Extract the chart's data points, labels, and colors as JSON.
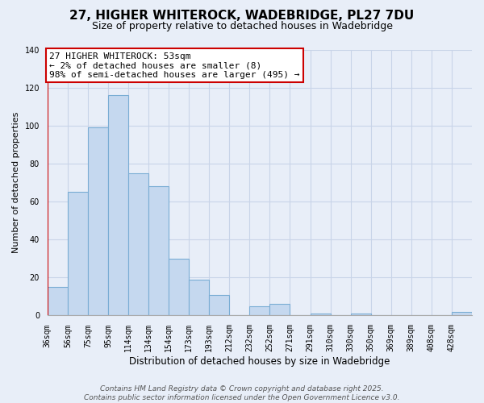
{
  "title": "27, HIGHER WHITEROCK, WADEBRIDGE, PL27 7DU",
  "subtitle": "Size of property relative to detached houses in Wadebridge",
  "xlabel": "Distribution of detached houses by size in Wadebridge",
  "ylabel": "Number of detached properties",
  "bar_labels": [
    "36sqm",
    "56sqm",
    "75sqm",
    "95sqm",
    "114sqm",
    "134sqm",
    "154sqm",
    "173sqm",
    "193sqm",
    "212sqm",
    "232sqm",
    "252sqm",
    "271sqm",
    "291sqm",
    "310sqm",
    "330sqm",
    "350sqm",
    "369sqm",
    "389sqm",
    "408sqm",
    "428sqm"
  ],
  "bar_values": [
    15,
    65,
    99,
    116,
    75,
    68,
    30,
    19,
    11,
    0,
    5,
    6,
    0,
    1,
    0,
    1,
    0,
    0,
    0,
    0,
    2
  ],
  "bar_color": "#c5d8ef",
  "bar_edge_color": "#7aadd4",
  "ylim": [
    0,
    140
  ],
  "yticks": [
    0,
    20,
    40,
    60,
    80,
    100,
    120,
    140
  ],
  "annotation_text_line1": "27 HIGHER WHITEROCK: 53sqm",
  "annotation_text_line2": "← 2% of detached houses are smaller (8)",
  "annotation_text_line3": "98% of semi-detached houses are larger (495) →",
  "vline_color": "#cc0000",
  "footer_line1": "Contains HM Land Registry data © Crown copyright and database right 2025.",
  "footer_line2": "Contains public sector information licensed under the Open Government Licence v3.0.",
  "background_color": "#e8eef8",
  "grid_color": "#c8d4e8",
  "title_fontsize": 11,
  "subtitle_fontsize": 9,
  "annotation_fontsize": 8,
  "footer_fontsize": 6.5,
  "ylabel_fontsize": 8,
  "xlabel_fontsize": 8.5,
  "tick_fontsize": 7
}
